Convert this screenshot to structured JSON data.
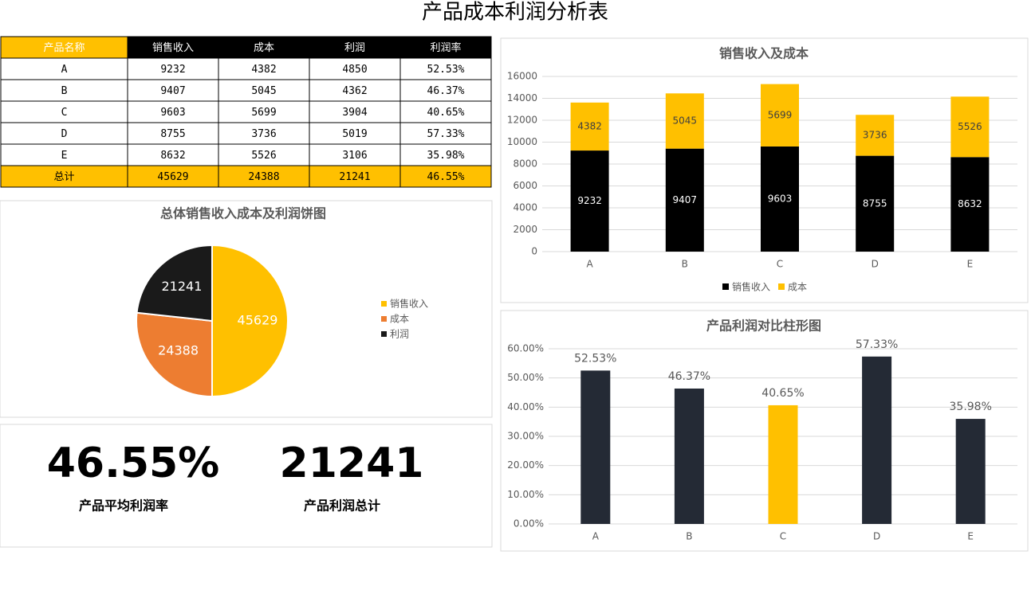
{
  "title": "产品成本利润分析表",
  "table": {
    "header": [
      "产品名称",
      "销售收入",
      "成本",
      "利润",
      "利润率"
    ],
    "rows": [
      [
        "A",
        "9232",
        "4382",
        "4850",
        "52.53%"
      ],
      [
        "B",
        "9407",
        "5045",
        "4362",
        "46.37%"
      ],
      [
        "C",
        "9603",
        "5699",
        "3904",
        "40.65%"
      ],
      [
        "D",
        "8755",
        "3736",
        "5019",
        "57.33%"
      ],
      [
        "E",
        "8632",
        "5526",
        "3106",
        "35.98%"
      ]
    ],
    "total": [
      "总计",
      "45629",
      "24388",
      "21241",
      "46.55%"
    ]
  },
  "chart_data": [
    {
      "type": "bar",
      "stacked": true,
      "title": "销售收入及成本",
      "categories": [
        "A",
        "B",
        "C",
        "D",
        "E"
      ],
      "series": [
        {
          "name": "销售收入",
          "color": "#000000",
          "values": [
            9232,
            9407,
            9603,
            8755,
            8632
          ]
        },
        {
          "name": "成本",
          "color": "#FFC000",
          "values": [
            4382,
            5045,
            5699,
            3736,
            5526
          ]
        }
      ],
      "ylim": [
        0,
        16000
      ],
      "yticks": [
        0,
        2000,
        4000,
        6000,
        8000,
        10000,
        12000,
        14000,
        16000
      ],
      "grid": true,
      "legend": "bottom"
    },
    {
      "type": "pie",
      "title": "总体销售收入成本及利润饼图",
      "categories": [
        "销售收入",
        "成本",
        "利润"
      ],
      "values": [
        45629,
        24388,
        21241
      ],
      "colors": [
        "#FFC000",
        "#ED7D31",
        "#1A1A1A"
      ],
      "legend": "right"
    },
    {
      "type": "bar",
      "title": "产品利润对比柱形图",
      "categories": [
        "A",
        "B",
        "C",
        "D",
        "E"
      ],
      "values": [
        52.53,
        46.37,
        40.65,
        57.33,
        35.98
      ],
      "value_labels": [
        "52.53%",
        "46.37%",
        "40.65%",
        "57.33%",
        "35.98%"
      ],
      "colors": [
        "#242A35",
        "#242A35",
        "#FFC000",
        "#242A35",
        "#242A35"
      ],
      "ylim": [
        0,
        60
      ],
      "yticks": [
        {
          "value": 0,
          "label": "0.00%"
        },
        {
          "value": 10,
          "label": "10.00%"
        },
        {
          "value": 20,
          "label": "20.00%"
        },
        {
          "value": 30,
          "label": "30.00%"
        },
        {
          "value": 40,
          "label": "40.00%"
        },
        {
          "value": 50,
          "label": "50.00%"
        },
        {
          "value": 60,
          "label": "60.00%"
        }
      ],
      "grid": true
    }
  ],
  "kpis": [
    {
      "value": "46.55%",
      "label": "产品平均利润率"
    },
    {
      "value": "21241",
      "label": "产品利润总计"
    }
  ]
}
